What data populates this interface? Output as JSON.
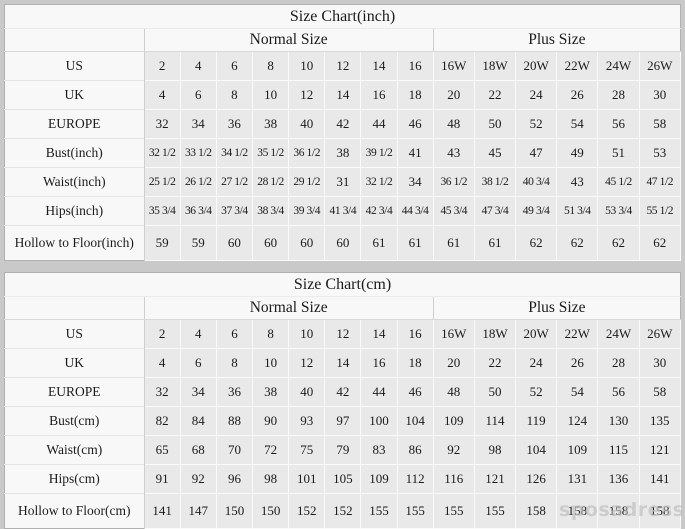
{
  "watermark": "sposadresses",
  "colors": {
    "page_bg": "#c9c9c9",
    "panel_bg": "#f8f8f8",
    "cell_bg": "#e9e9e9",
    "text": "#1b1b1b"
  },
  "chart_data": [
    {
      "type": "table",
      "title": "Size Chart(inch)",
      "group_headers": [
        "Normal Size",
        "Plus Size"
      ],
      "rows": [
        {
          "label": "US",
          "normal": [
            "2",
            "4",
            "6",
            "8",
            "10",
            "12",
            "14",
            "16"
          ],
          "plus": [
            "16W",
            "18W",
            "20W",
            "22W",
            "24W",
            "26W"
          ]
        },
        {
          "label": "UK",
          "normal": [
            "4",
            "6",
            "8",
            "10",
            "12",
            "14",
            "16",
            "18"
          ],
          "plus": [
            "20",
            "22",
            "24",
            "26",
            "28",
            "30"
          ]
        },
        {
          "label": "EUROPE",
          "normal": [
            "32",
            "34",
            "36",
            "38",
            "40",
            "42",
            "44",
            "46"
          ],
          "plus": [
            "48",
            "50",
            "52",
            "54",
            "56",
            "58"
          ]
        },
        {
          "label": "Bust(inch)",
          "normal": [
            "32 1/2",
            "33 1/2",
            "34 1/2",
            "35 1/2",
            "36 1/2",
            "38",
            "39 1/2",
            "41"
          ],
          "plus": [
            "43",
            "45",
            "47",
            "49",
            "51",
            "53"
          ]
        },
        {
          "label": "Waist(inch)",
          "normal": [
            "25 1/2",
            "26 1/2",
            "27 1/2",
            "28 1/2",
            "29 1/2",
            "31",
            "32 1/2",
            "34"
          ],
          "plus": [
            "36 1/2",
            "38 1/2",
            "40 3/4",
            "43",
            "45 1/2",
            "47 1/2"
          ]
        },
        {
          "label": "Hips(inch)",
          "normal": [
            "35 3/4",
            "36 3/4",
            "37 3/4",
            "38 3/4",
            "39 3/4",
            "41 3/4",
            "42 3/4",
            "44 3/4"
          ],
          "plus": [
            "45 3/4",
            "47 3/4",
            "49 3/4",
            "51 3/4",
            "53 3/4",
            "55 1/2"
          ]
        },
        {
          "label": "Hollow to Floor(inch)",
          "normal": [
            "59",
            "59",
            "60",
            "60",
            "60",
            "60",
            "61",
            "61"
          ],
          "plus": [
            "61",
            "61",
            "62",
            "62",
            "62",
            "62"
          ]
        }
      ]
    },
    {
      "type": "table",
      "title": "Size Chart(cm)",
      "group_headers": [
        "Normal Size",
        "Plus Size"
      ],
      "rows": [
        {
          "label": "US",
          "normal": [
            "2",
            "4",
            "6",
            "8",
            "10",
            "12",
            "14",
            "16"
          ],
          "plus": [
            "16W",
            "18W",
            "20W",
            "22W",
            "24W",
            "26W"
          ]
        },
        {
          "label": "UK",
          "normal": [
            "4",
            "6",
            "8",
            "10",
            "12",
            "14",
            "16",
            "18"
          ],
          "plus": [
            "20",
            "22",
            "24",
            "26",
            "28",
            "30"
          ]
        },
        {
          "label": "EUROPE",
          "normal": [
            "32",
            "34",
            "36",
            "38",
            "40",
            "42",
            "44",
            "46"
          ],
          "plus": [
            "48",
            "50",
            "52",
            "54",
            "56",
            "58"
          ]
        },
        {
          "label": "Bust(cm)",
          "normal": [
            "82",
            "84",
            "88",
            "90",
            "93",
            "97",
            "100",
            "104"
          ],
          "plus": [
            "109",
            "114",
            "119",
            "124",
            "130",
            "135"
          ]
        },
        {
          "label": "Waist(cm)",
          "normal": [
            "65",
            "68",
            "70",
            "72",
            "75",
            "79",
            "83",
            "86"
          ],
          "plus": [
            "92",
            "98",
            "104",
            "109",
            "115",
            "121"
          ]
        },
        {
          "label": "Hips(cm)",
          "normal": [
            "91",
            "92",
            "96",
            "98",
            "101",
            "105",
            "109",
            "112"
          ],
          "plus": [
            "116",
            "121",
            "126",
            "131",
            "136",
            "141"
          ]
        },
        {
          "label": "Hollow to Floor(cm)",
          "normal": [
            "141",
            "147",
            "150",
            "150",
            "152",
            "152",
            "155",
            "155"
          ],
          "plus": [
            "155",
            "155",
            "158",
            "158",
            "158",
            "158"
          ]
        }
      ]
    }
  ]
}
